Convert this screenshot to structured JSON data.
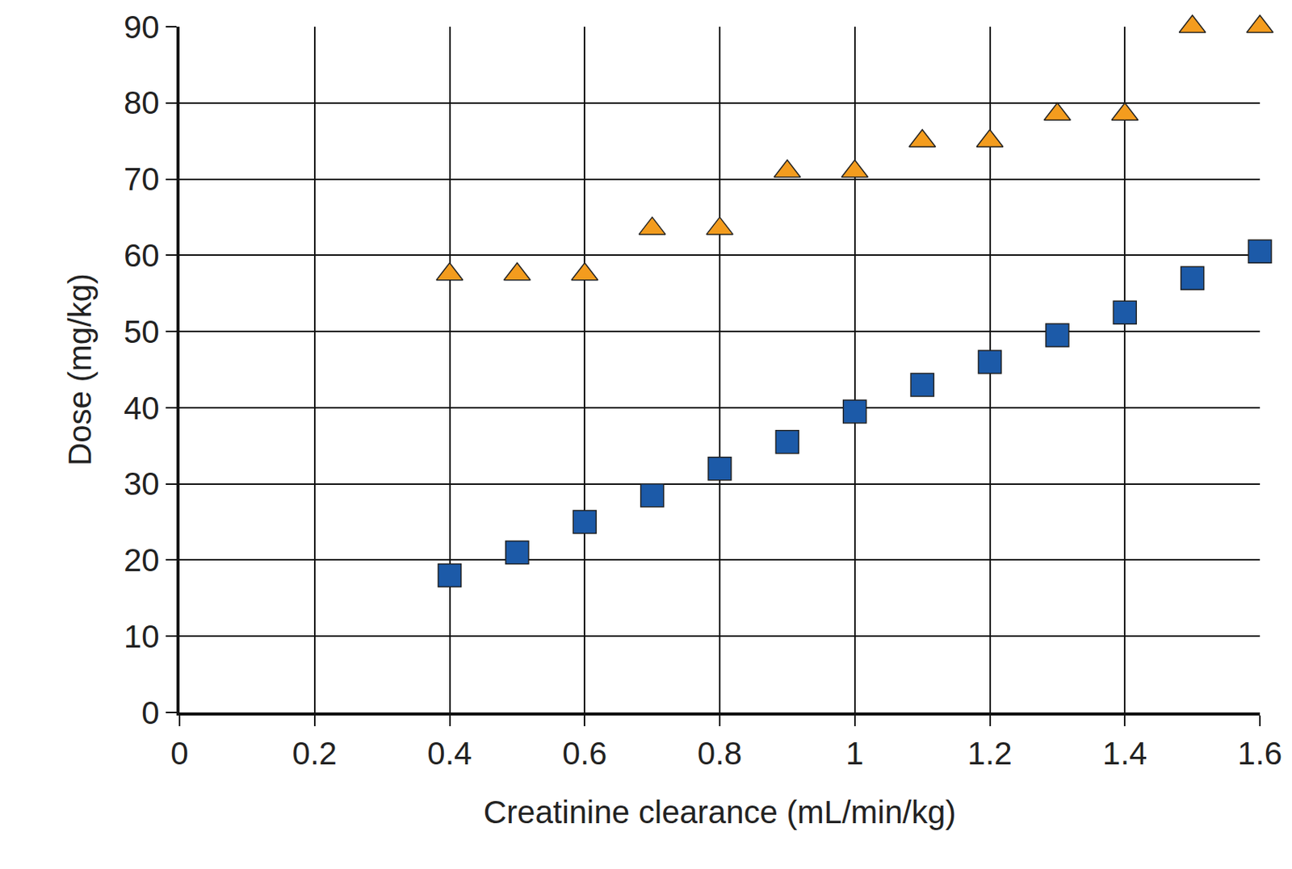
{
  "chart_data": {
    "type": "scatter",
    "x_label": "Creatinine clearance (mL/min/kg)",
    "y_label": "Dose (mg/kg)",
    "xlim": [
      0,
      1.6
    ],
    "ylim": [
      0,
      90
    ],
    "xticks": [
      0,
      0.2,
      0.4,
      0.6,
      0.8,
      1,
      1.2,
      1.4,
      1.6
    ],
    "yticks": [
      0,
      10,
      20,
      30,
      40,
      50,
      60,
      70,
      80,
      90
    ],
    "grid": true,
    "series": [
      {
        "color": "#f39c1e",
        "marker": "triangle-up",
        "x": [
          0.4,
          0.5,
          0.6,
          0.7,
          0.8,
          0.9,
          1.0,
          1.1,
          1.2,
          1.3,
          1.4,
          1.5,
          1.6
        ],
        "values": [
          57.5,
          57.5,
          57.5,
          63.5,
          63.5,
          71,
          71,
          75,
          75,
          78.5,
          78.5,
          90,
          90
        ]
      },
      {
        "color": "#1c5aa8",
        "marker": "square",
        "x": [
          0.4,
          0.5,
          0.6,
          0.7,
          0.8,
          0.9,
          1.0,
          1.1,
          1.2,
          1.3,
          1.4,
          1.5,
          1.6
        ],
        "values": [
          18,
          21,
          25,
          28.5,
          32,
          35.5,
          39.5,
          43,
          46,
          49.5,
          52.5,
          57,
          60.5
        ]
      }
    ]
  }
}
